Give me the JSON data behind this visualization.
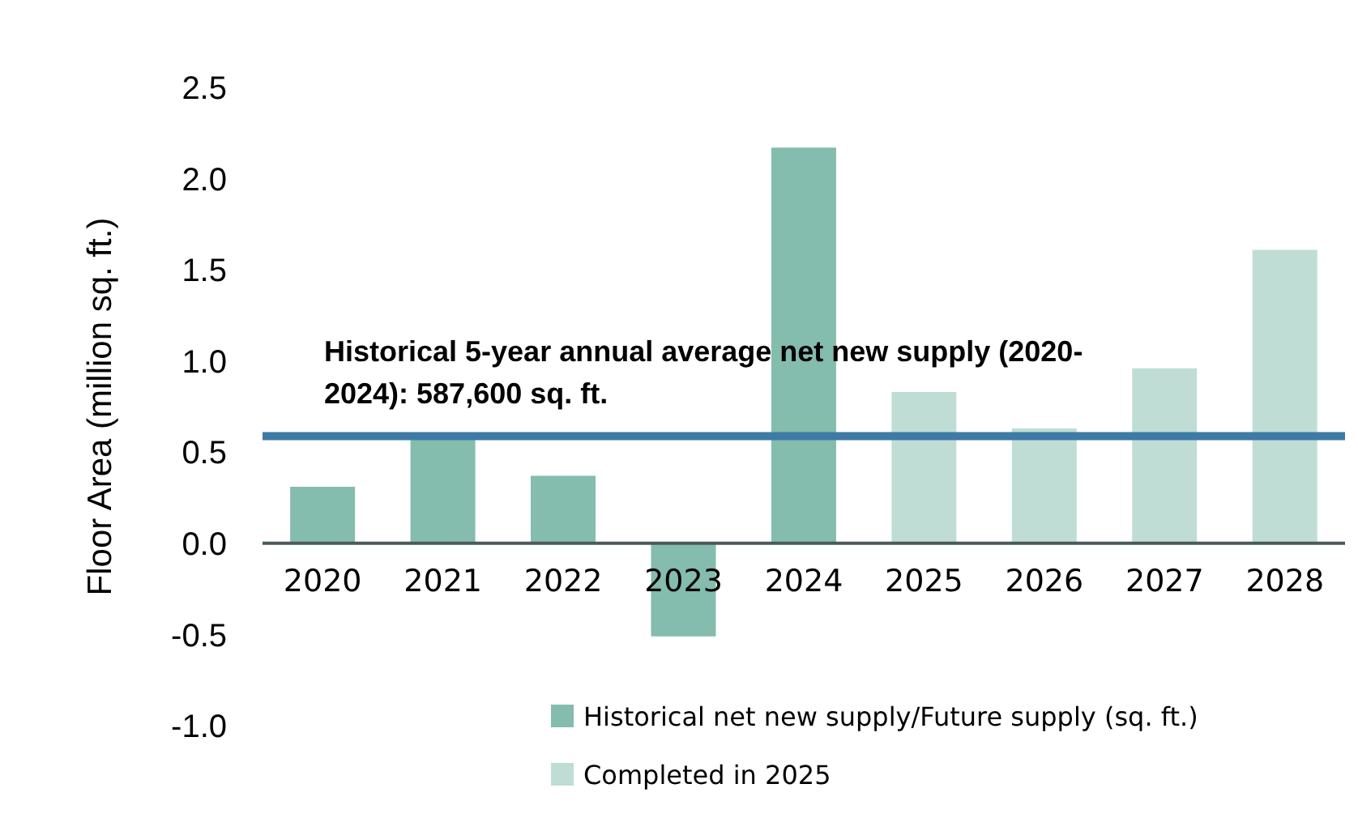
{
  "chart_data": {
    "type": "bar",
    "ylabel": "Floor Area (million sq. ft.)",
    "categories": [
      "2020",
      "2021",
      "2022",
      "2023",
      "2024",
      "2025",
      "2026",
      "2027",
      "2028"
    ],
    "stacked": true,
    "series": [
      {
        "name": "Historical net new supply/Future supply (sq. ft.)",
        "color": "#84bcad",
        "colors": [
          "#84bcad",
          "#84bcad",
          "#84bcad",
          "#84bcad",
          "#84bcad",
          null,
          "#c0ddd5",
          "#c0ddd5",
          "#c0ddd5"
        ],
        "values": [
          0.31,
          0.57,
          0.37,
          -0.51,
          2.17,
          null,
          0.63,
          0.96,
          1.61
        ]
      },
      {
        "name": "Completed in 2025",
        "color": "#c0ddd5",
        "values": [
          null,
          null,
          null,
          null,
          null,
          0.83,
          null,
          null,
          null
        ]
      }
    ],
    "ylim": [
      -1,
      2.5
    ],
    "yticks": [
      {
        "value": -1,
        "label": "-1.0"
      },
      {
        "value": -0.5,
        "label": "-0.5"
      },
      {
        "value": 0,
        "label": "0.0"
      },
      {
        "value": 0.5,
        "label": "0.5"
      },
      {
        "value": 1,
        "label": "1.0"
      },
      {
        "value": 1.5,
        "label": "1.5"
      },
      {
        "value": 2,
        "label": "2.0"
      },
      {
        "value": 2.5,
        "label": "2.5"
      }
    ],
    "ref_lines": [
      {
        "axis": "y",
        "value": 0.5876,
        "label": "Historical 5-year annual average net new supply (2020-2024): 587,600 sq. ft.",
        "color": "#3e7aa6"
      }
    ],
    "legend": "bottom right"
  }
}
